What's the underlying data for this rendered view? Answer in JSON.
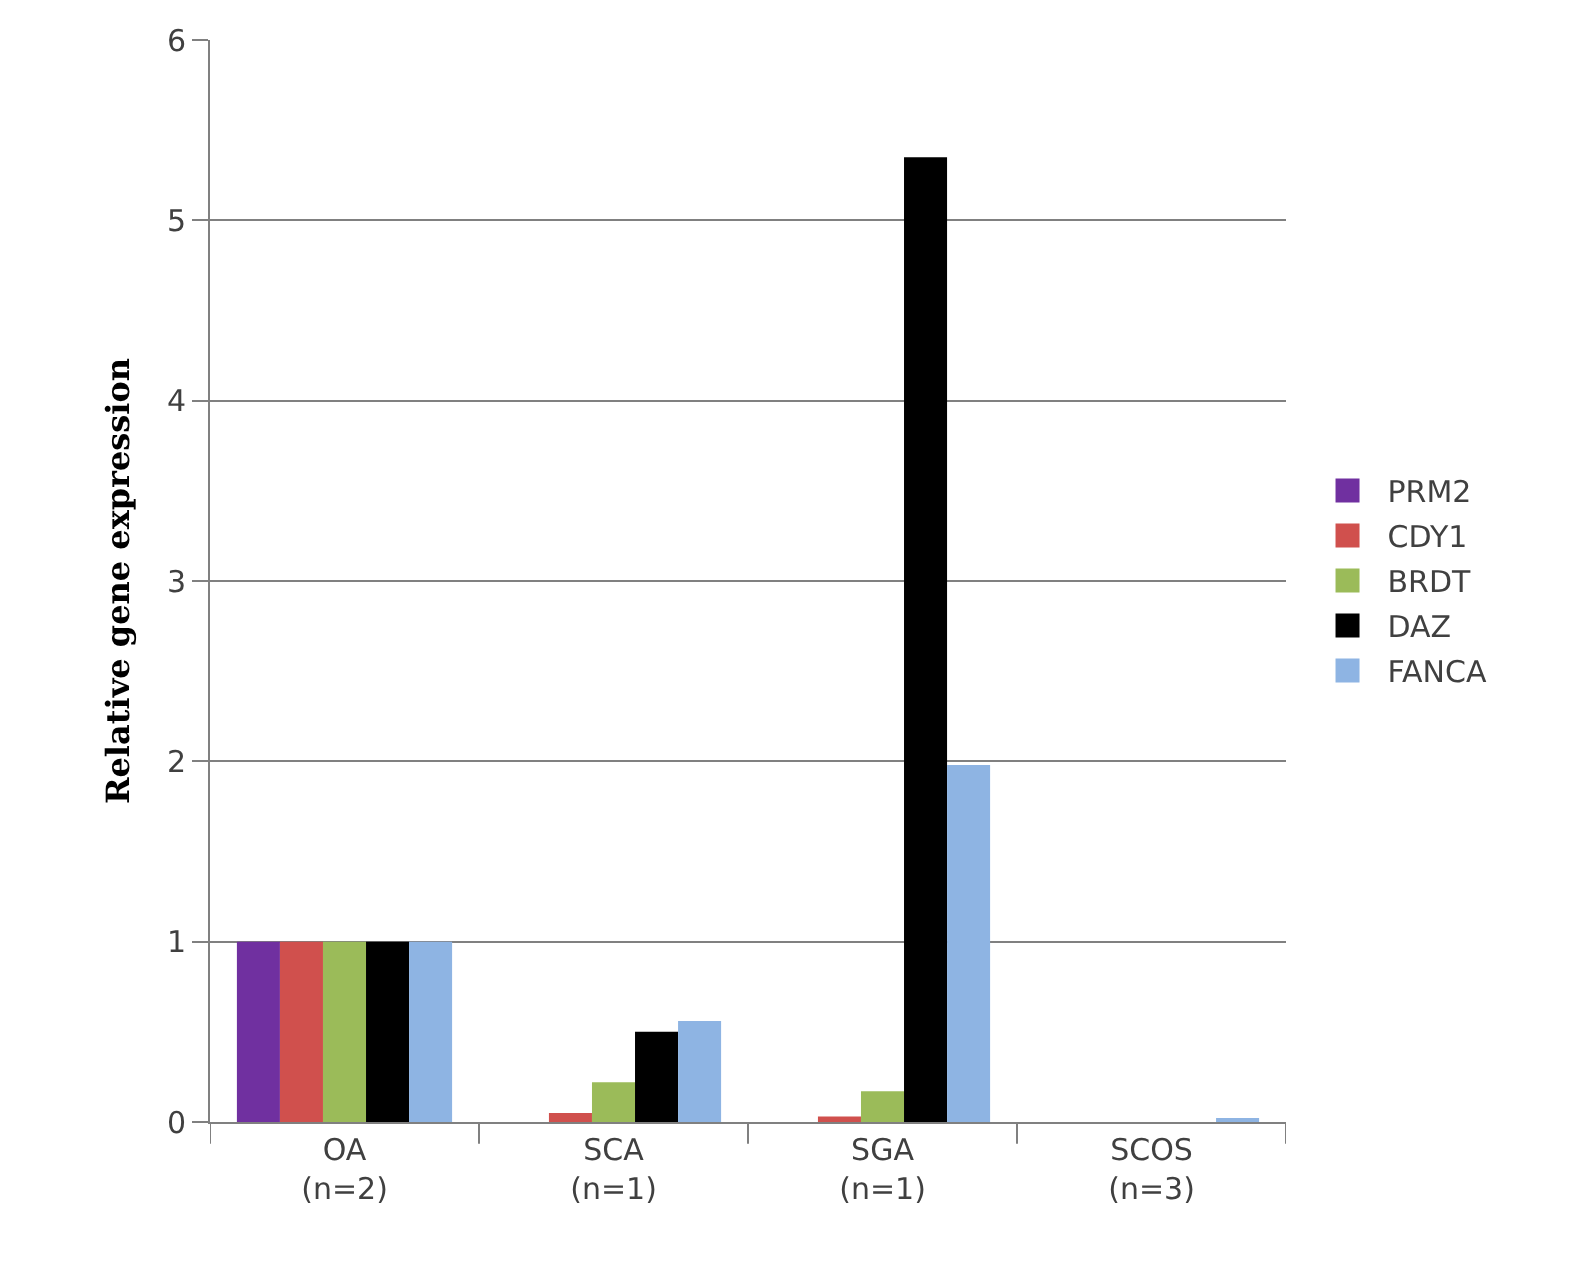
{
  "chart_data": {
    "type": "bar",
    "ylabel": "Relative gene expression",
    "categories": [
      "OA\n(n=2)",
      "SCA\n(n=1)",
      "SGA\n(n=1)",
      "SCOS\n(n=3)"
    ],
    "series": [
      {
        "name": "PRM2",
        "color": "#7030a0",
        "values": [
          1,
          0,
          0,
          0
        ]
      },
      {
        "name": "CDY1",
        "color": "#d0504d",
        "values": [
          1,
          0.05,
          0.03,
          0
        ]
      },
      {
        "name": "BRDT",
        "color": "#9bbb59",
        "values": [
          1,
          0.22,
          0.17,
          0
        ]
      },
      {
        "name": "DAZ",
        "color": "#000000",
        "values": [
          1,
          0.5,
          5.35,
          0
        ]
      },
      {
        "name": "FANCA",
        "color": "#8eb4e3",
        "values": [
          1,
          0.56,
          1.98,
          0.02
        ]
      }
    ],
    "ylim": [
      0,
      6
    ],
    "yticks": [
      0,
      1,
      2,
      3,
      4,
      5,
      6
    ],
    "grid": "y",
    "legend": "right"
  }
}
